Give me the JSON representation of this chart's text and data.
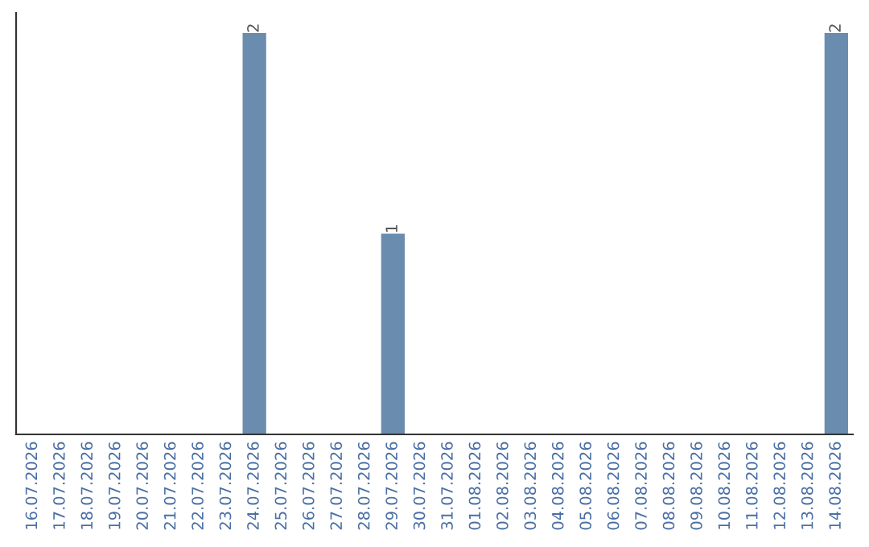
{
  "chart_data": {
    "type": "bar",
    "categories": [
      "16.07.2026",
      "17.07.2026",
      "18.07.2026",
      "19.07.2026",
      "20.07.2026",
      "21.07.2026",
      "22.07.2026",
      "23.07.2026",
      "24.07.2026",
      "25.07.2026",
      "26.07.2026",
      "27.07.2026",
      "28.07.2026",
      "29.07.2026",
      "30.07.2026",
      "31.07.2026",
      "01.08.2026",
      "02.08.2026",
      "03.08.2026",
      "04.08.2026",
      "05.08.2026",
      "06.08.2026",
      "07.08.2026",
      "08.08.2026",
      "09.08.2026",
      "10.08.2026",
      "11.08.2026",
      "12.08.2026",
      "13.08.2026",
      "14.08.2026"
    ],
    "values": [
      0,
      0,
      0,
      0,
      0,
      0,
      0,
      0,
      2,
      0,
      0,
      0,
      0,
      1,
      0,
      0,
      0,
      0,
      0,
      0,
      0,
      0,
      0,
      0,
      0,
      0,
      0,
      0,
      0,
      2
    ],
    "value_labels": [
      null,
      null,
      null,
      null,
      null,
      null,
      null,
      null,
      "2",
      null,
      null,
      null,
      null,
      "1",
      null,
      null,
      null,
      null,
      null,
      null,
      null,
      null,
      null,
      null,
      null,
      null,
      null,
      null,
      null,
      "2"
    ],
    "color": "#6a8caf",
    "grid": false,
    "legend": false
  }
}
